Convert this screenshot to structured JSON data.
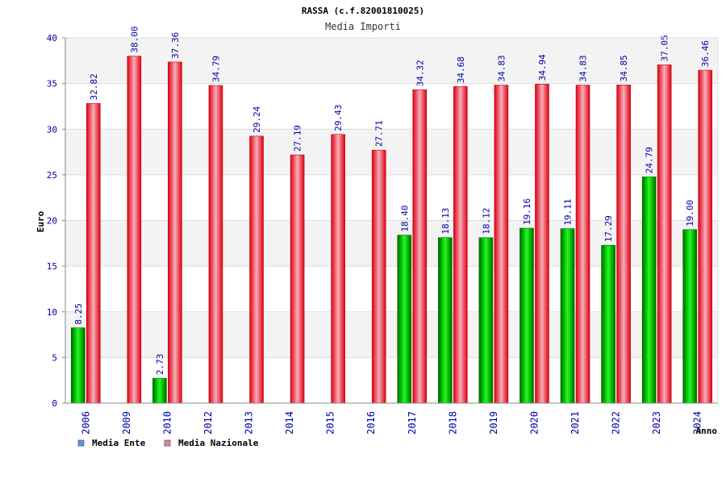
{
  "chart_data": {
    "type": "bar",
    "title": "RASSA (c.f.82001810025)",
    "subtitle": "Media Importi",
    "xlabel": "Anno",
    "ylabel": "Euro",
    "ylim": [
      0,
      40
    ],
    "yticks": [
      0,
      5,
      10,
      15,
      20,
      25,
      30,
      35,
      40
    ],
    "grid": true,
    "legend_position": "bottom-left",
    "categories": [
      "2006",
      "2009",
      "2010",
      "2012",
      "2013",
      "2014",
      "2015",
      "2016",
      "2017",
      "2018",
      "2019",
      "2020",
      "2021",
      "2022",
      "2023",
      "2024"
    ],
    "series": [
      {
        "name": "Media Ente",
        "color": "#00aa00",
        "legend_color": "#5599ee",
        "values": [
          8.25,
          null,
          2.73,
          null,
          null,
          null,
          null,
          null,
          18.4,
          18.13,
          18.12,
          19.16,
          19.11,
          17.29,
          24.79,
          19.0
        ],
        "labels": [
          "8.25",
          "",
          "2.73",
          "",
          "",
          "",
          "",
          "",
          "18.40",
          "18.13",
          "18.12",
          "19.16",
          "19.11",
          "17.29",
          "24.79",
          "19.00"
        ]
      },
      {
        "name": "Media Nazionale",
        "color": "#ee1122",
        "legend_color": "#dd88aa",
        "values": [
          32.82,
          38.0,
          37.36,
          34.79,
          29.24,
          27.19,
          29.43,
          27.71,
          34.32,
          34.68,
          34.83,
          34.94,
          34.83,
          34.85,
          37.05,
          36.46
        ],
        "labels": [
          "32.82",
          "38.00",
          "37.36",
          "34.79",
          "29.24",
          "27.19",
          "29.43",
          "27.71",
          "34.32",
          "34.68",
          "34.83",
          "34.94",
          "34.83",
          "34.85",
          "37.05",
          "36.46"
        ]
      }
    ]
  }
}
